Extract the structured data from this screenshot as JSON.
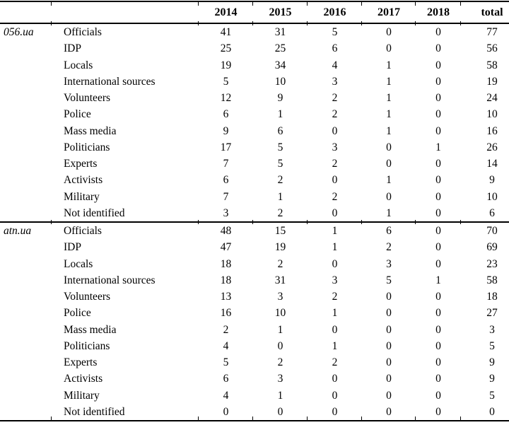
{
  "chart_data": {
    "type": "table",
    "columns": [
      "2014",
      "2015",
      "2016",
      "2017",
      "2018",
      "total"
    ],
    "groups": [
      {
        "source": "056.ua",
        "rows": [
          {
            "label": "Officials",
            "values": [
              41,
              31,
              5,
              0,
              0,
              77
            ]
          },
          {
            "label": "IDP",
            "values": [
              25,
              25,
              6,
              0,
              0,
              56
            ]
          },
          {
            "label": "Locals",
            "values": [
              19,
              34,
              4,
              1,
              0,
              58
            ]
          },
          {
            "label": "International sources",
            "values": [
              5,
              10,
              3,
              1,
              0,
              19
            ]
          },
          {
            "label": "Volunteers",
            "values": [
              12,
              9,
              2,
              1,
              0,
              24
            ]
          },
          {
            "label": "Police",
            "values": [
              6,
              1,
              2,
              1,
              0,
              10
            ]
          },
          {
            "label": "Mass media",
            "values": [
              9,
              6,
              0,
              1,
              0,
              16
            ]
          },
          {
            "label": "Politicians",
            "values": [
              17,
              5,
              3,
              0,
              1,
              26
            ]
          },
          {
            "label": "Experts",
            "values": [
              7,
              5,
              2,
              0,
              0,
              14
            ]
          },
          {
            "label": "Activists",
            "values": [
              6,
              2,
              0,
              1,
              0,
              9
            ]
          },
          {
            "label": "Military",
            "values": [
              7,
              1,
              2,
              0,
              0,
              10
            ]
          },
          {
            "label": "Not identified",
            "values": [
              3,
              2,
              0,
              1,
              0,
              6
            ]
          }
        ]
      },
      {
        "source": "atn.ua",
        "rows": [
          {
            "label": "Officials",
            "values": [
              48,
              15,
              1,
              6,
              0,
              70
            ]
          },
          {
            "label": "IDP",
            "values": [
              47,
              19,
              1,
              2,
              0,
              69
            ]
          },
          {
            "label": "Locals",
            "values": [
              18,
              2,
              0,
              3,
              0,
              23
            ]
          },
          {
            "label": "International sources",
            "values": [
              18,
              31,
              3,
              5,
              1,
              58
            ]
          },
          {
            "label": "Volunteers",
            "values": [
              13,
              3,
              2,
              0,
              0,
              18
            ]
          },
          {
            "label": "Police",
            "values": [
              16,
              10,
              1,
              0,
              0,
              27
            ]
          },
          {
            "label": "Mass media",
            "values": [
              2,
              1,
              0,
              0,
              0,
              3
            ]
          },
          {
            "label": "Politicians",
            "values": [
              4,
              0,
              1,
              0,
              0,
              5
            ]
          },
          {
            "label": "Experts",
            "values": [
              5,
              2,
              2,
              0,
              0,
              9
            ]
          },
          {
            "label": "Activists",
            "values": [
              6,
              3,
              0,
              0,
              0,
              9
            ]
          },
          {
            "label": "Military",
            "values": [
              4,
              1,
              0,
              0,
              0,
              5
            ]
          },
          {
            "label": "Not identified",
            "values": [
              0,
              0,
              0,
              0,
              0,
              0
            ]
          }
        ]
      }
    ],
    "text_color": "#000000",
    "background_color": "#ffffff"
  }
}
